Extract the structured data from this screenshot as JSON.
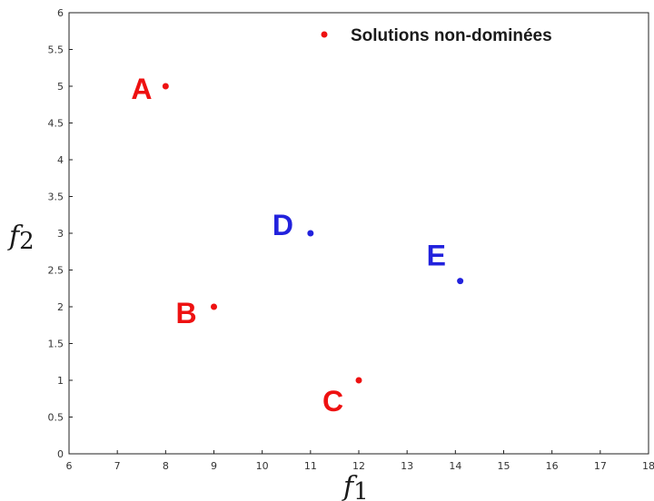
{
  "chart_data": {
    "type": "scatter",
    "title": "",
    "xlabel": "f",
    "xlabel_sub": "1",
    "ylabel": "f",
    "ylabel_sub": "2",
    "xlim": [
      6,
      18
    ],
    "ylim": [
      0,
      6
    ],
    "xticks": [
      6,
      7,
      8,
      9,
      10,
      11,
      12,
      13,
      14,
      15,
      16,
      17,
      18
    ],
    "yticks": [
      0,
      0.5,
      1,
      1.5,
      2,
      2.5,
      3,
      3.5,
      4,
      4.5,
      5,
      5.5,
      6
    ],
    "grid": false,
    "legend": {
      "position": "top-right",
      "entries": [
        {
          "label": "Solutions non-dominées",
          "color": "#ee1111"
        }
      ]
    },
    "series": [
      {
        "name": "Solutions non-dominées",
        "color": "#ee1111",
        "points": [
          {
            "label": "A",
            "x": 8,
            "y": 5
          },
          {
            "label": "B",
            "x": 9,
            "y": 2
          },
          {
            "label": "C",
            "x": 12,
            "y": 1
          }
        ]
      },
      {
        "color": "#2222dd",
        "points": [
          {
            "label": "D",
            "x": 11,
            "y": 3
          },
          {
            "label": "E",
            "x": 14.1,
            "y": 2.35
          }
        ]
      }
    ]
  }
}
